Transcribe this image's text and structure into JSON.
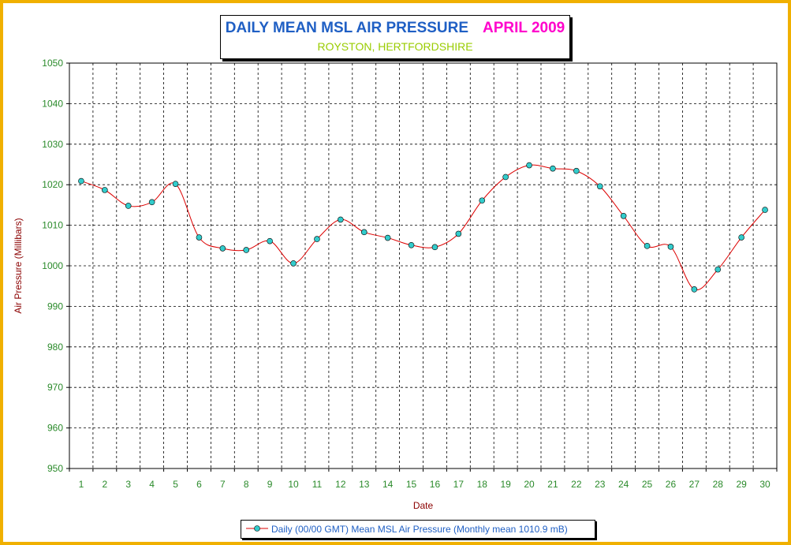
{
  "chart_data": {
    "type": "line",
    "title": "DAILY MEAN MSL AIR PRESSURE",
    "title_month": "APRIL 2009",
    "subtitle": "ROYSTON, HERTFORDSHIRE",
    "xlabel": "Date",
    "ylabel": "Air Pressure (Millibars)",
    "ylim": [
      950,
      1050
    ],
    "ytick_step": 10,
    "grid": true,
    "legend_position": "bottom",
    "x": [
      1,
      2,
      3,
      4,
      5,
      6,
      7,
      8,
      9,
      10,
      11,
      12,
      13,
      14,
      15,
      16,
      17,
      18,
      19,
      20,
      21,
      22,
      23,
      24,
      25,
      26,
      27,
      28,
      29,
      30
    ],
    "series": [
      {
        "name": "Daily (00/00 GMT) Mean MSL Air Pressure (Monthly mean 1010.9 mB)",
        "values": [
          1020.9,
          1018.7,
          1014.8,
          1015.7,
          1020.2,
          1007.0,
          1004.3,
          1003.9,
          1006.1,
          1000.6,
          1006.6,
          1011.4,
          1008.3,
          1006.9,
          1005.1,
          1004.6,
          1007.9,
          1016.1,
          1021.9,
          1024.8,
          1024.0,
          1023.4,
          1019.6,
          1012.3,
          1004.9,
          1004.7,
          994.2,
          999.1,
          1007.0,
          1013.8
        ]
      }
    ],
    "colors": {
      "line": "#dd0000",
      "marker_fill": "#33cccc",
      "axis_text": "#2a8a2a",
      "ylabel": "#8b0000",
      "frame": "#f0b000"
    }
  }
}
